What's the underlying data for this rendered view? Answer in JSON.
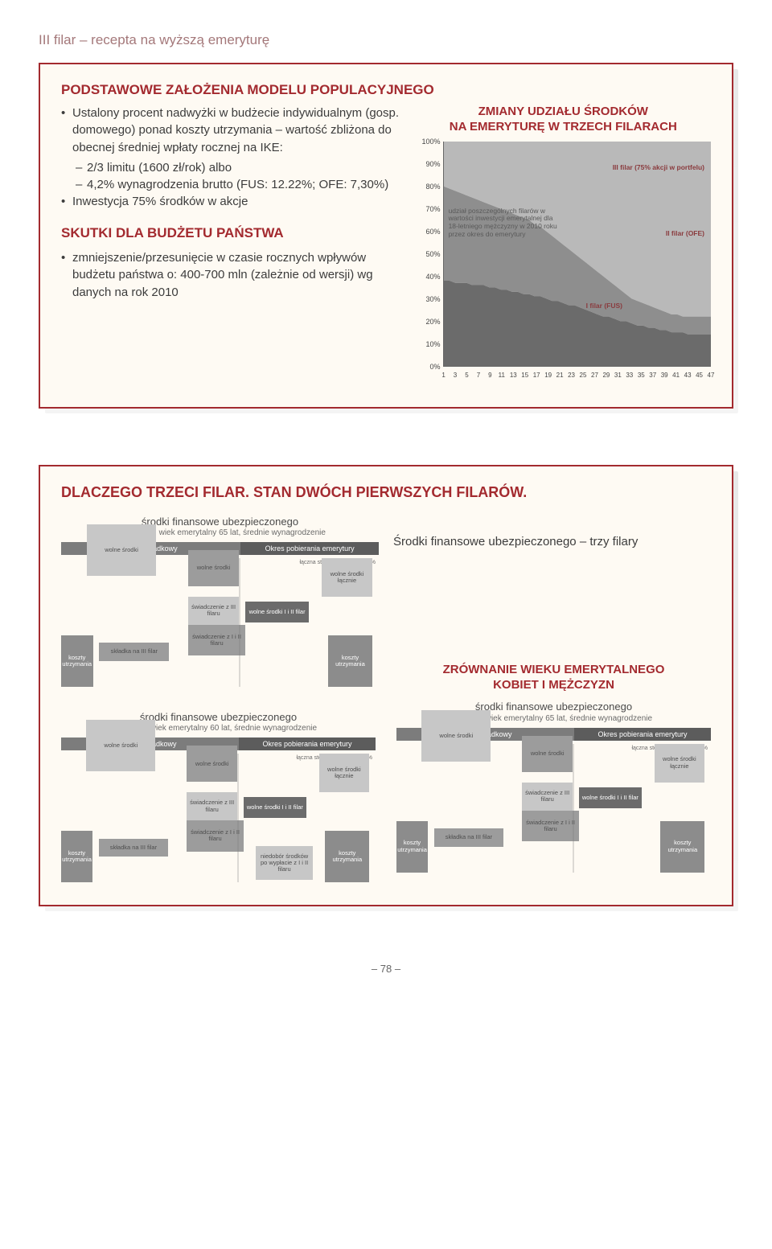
{
  "header": "III filar – recepta na wyższą emeryturę",
  "card1": {
    "title": "PODSTAWOWE ZAŁOŻENIA MODELU POPULACYJNEGO",
    "bullets": [
      {
        "text": "Ustalony procent nadwyżki w budżecie indywidualnym (gosp. domowego) ponad koszty utrzymania – wartość zbliżona do obecnej średniej wpłaty rocznej na IKE:"
      },
      {
        "dash": true,
        "text": "2/3 limitu (1600 zł/rok)  albo"
      },
      {
        "dash": true,
        "text": "4,2% wynagrodzenia brutto (FUS: 12.22%; OFE: 7,30%)"
      },
      {
        "text": "Inwestycja 75% środków w akcje"
      }
    ],
    "subtitle": "SKUTKI DLA BUDŻETU PAŃSTWA",
    "bullets2": [
      {
        "text": "zmniejszenie/przesunięcie w czasie rocznych wpływów budżetu państwa o: 400-700 mln (zależnie od wersji) wg danych na rok 2010"
      }
    ],
    "chart": {
      "title_l1": "ZMIANY UDZIAŁU ŚRODKÓW",
      "title_l2": "NA EMERYTURĘ W TRZECH FILARACH",
      "yticks": [
        "100%",
        "90%",
        "80%",
        "70%",
        "60%",
        "50%",
        "40%",
        "30%",
        "20%",
        "10%",
        "0%"
      ],
      "xticks": [
        "1",
        "3",
        "5",
        "7",
        "9",
        "11",
        "13",
        "15",
        "17",
        "19",
        "21",
        "23",
        "25",
        "27",
        "29",
        "31",
        "33",
        "35",
        "37",
        "39",
        "41",
        "43",
        "45",
        "47"
      ],
      "legend_top": "III filar (75% akcji w portfelu)",
      "legend_mid": "II filar (OFE)",
      "legend_bot": "I filar (FUS)",
      "annot": "udział poszczególnych filarów w wartości inwestycji emerytalnej dla 18-letniego mężczyzny w 2010 roku przez okres do emerytury",
      "bg": "#ffffff",
      "c_top": "#b9b9b9",
      "c_mid": "#8e8e8e",
      "c_bot": "#6b6b6b",
      "label_color": "#8a3b3e",
      "bound_top_pct": [
        80,
        79,
        78,
        77,
        76,
        75,
        74,
        73,
        72,
        71,
        70,
        69,
        68,
        67,
        66,
        65,
        63,
        62,
        60,
        58,
        56,
        54,
        52,
        50,
        48,
        46,
        44,
        42,
        40,
        38,
        36,
        34,
        32,
        30,
        29,
        28,
        27,
        26,
        25,
        24,
        23,
        23,
        22,
        22,
        22,
        22,
        22,
        22
      ],
      "bound_mid_pct": [
        38,
        38,
        37,
        37,
        37,
        36,
        36,
        36,
        35,
        35,
        34,
        34,
        33,
        33,
        32,
        32,
        31,
        31,
        30,
        29,
        29,
        28,
        27,
        27,
        26,
        25,
        24,
        23,
        22,
        22,
        21,
        20,
        20,
        19,
        18,
        18,
        17,
        17,
        16,
        16,
        15,
        15,
        15,
        14,
        14,
        14,
        14,
        14
      ]
    }
  },
  "card2": {
    "title": "DLACZEGO TRZECI FILAR. STAN DWÓCH PIERWSZYCH FILARÓW.",
    "right_text": "Środki finansowe ubezpieczonego – trzy filary",
    "eq_title_l1": "ZRÓWNANIE WIEKU EMERYTALNEGO",
    "eq_title_l2": "KOBIET I MĘŻCZYZN",
    "minis": {
      "m_top_left": {
        "h": "środki finansowe ubezpieczonego",
        "s": "mężczyzna, wiek emerytalny 65 lat, średnie wynagrodzenie",
        "pa": "okres składkowy",
        "pb": "Okres pobierania emerytury",
        "rate": "łączna stopa zastąpienia: 93%"
      },
      "m_bot_left": {
        "h": "środki finansowe ubezpieczonego",
        "s": "kobieta, wiek emerytalny 60 lat, średnie wynagrodzenie",
        "pa": "okres składkowy",
        "pb": "Okres pobierania emerytury",
        "rate": "łączna stopa zastąpienia: 53%"
      },
      "m_bot_right": {
        "h": "środki finansowe ubezpieczonego",
        "s": "kobieta, wiek emerytalny 65 lat, średnie wynagrodzenie",
        "pa": "okres składkowy",
        "pb": "Okres pobierania emerytury",
        "rate": "łączna stopa zastąpienia: 77%"
      },
      "labels": {
        "wolne": "wolne środki",
        "wolne_lacznie": "wolne środki łącznie",
        "wolne_iii": "wolne środki I i II filar",
        "swiad_iii": "świadczenie z III filaru",
        "swiad_i_ii": "świadczenie z I i II filaru",
        "skladka": "składka na III filar",
        "koszty": "koszty utrzymania",
        "niedobor": "niedobór środków po wypłacie z I i II filaru"
      }
    }
  },
  "pagenum": "– 78 –"
}
